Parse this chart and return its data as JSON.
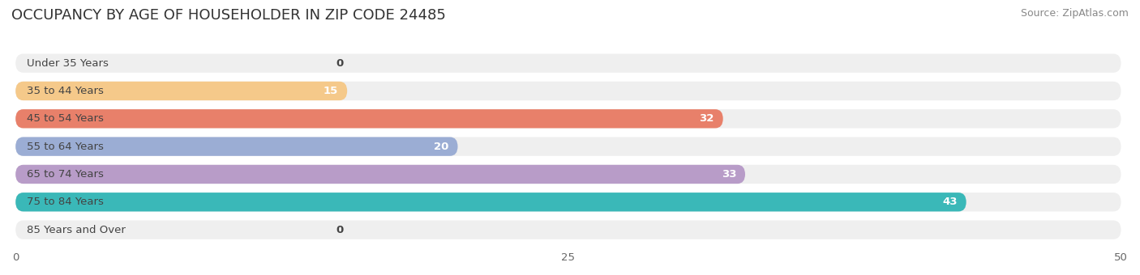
{
  "title": "OCCUPANCY BY AGE OF HOUSEHOLDER IN ZIP CODE 24485",
  "source": "Source: ZipAtlas.com",
  "categories": [
    "Under 35 Years",
    "35 to 44 Years",
    "45 to 54 Years",
    "55 to 64 Years",
    "65 to 74 Years",
    "75 to 84 Years",
    "85 Years and Over"
  ],
  "values": [
    0,
    15,
    32,
    20,
    33,
    43,
    0
  ],
  "bar_colors": [
    "#f4a7b9",
    "#f5c98a",
    "#e8806a",
    "#9badd4",
    "#b89cc8",
    "#3ab8b8",
    "#c5bce8"
  ],
  "bar_bg_color": "#efefef",
  "xlim": [
    0,
    50
  ],
  "xticks": [
    0,
    25,
    50
  ],
  "title_fontsize": 13,
  "label_fontsize": 9.5,
  "value_fontsize": 9.5,
  "source_fontsize": 9,
  "bar_height": 0.68,
  "fig_width": 14.06,
  "fig_height": 3.4,
  "background_color": "#ffffff"
}
